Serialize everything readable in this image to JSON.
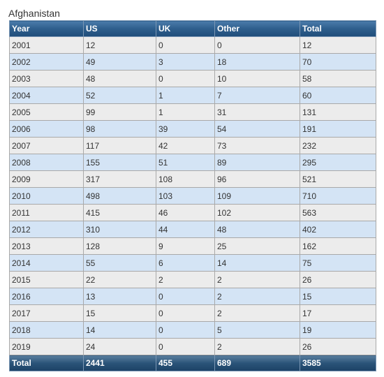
{
  "caption": "Afghanistan",
  "columns": [
    "Year",
    "US",
    "UK",
    "Other",
    "Total"
  ],
  "rows": [
    [
      "2001",
      "12",
      "0",
      "0",
      "12"
    ],
    [
      "2002",
      "49",
      "3",
      "18",
      "70"
    ],
    [
      "2003",
      "48",
      "0",
      "10",
      "58"
    ],
    [
      "2004",
      "52",
      "1",
      "7",
      "60"
    ],
    [
      "2005",
      "99",
      "1",
      "31",
      "131"
    ],
    [
      "2006",
      "98",
      "39",
      "54",
      "191"
    ],
    [
      "2007",
      "117",
      "42",
      "73",
      "232"
    ],
    [
      "2008",
      "155",
      "51",
      "89",
      "295"
    ],
    [
      "2009",
      "317",
      "108",
      "96",
      "521"
    ],
    [
      "2010",
      "498",
      "103",
      "109",
      "710"
    ],
    [
      "2011",
      "415",
      "46",
      "102",
      "563"
    ],
    [
      "2012",
      "310",
      "44",
      "48",
      "402"
    ],
    [
      "2013",
      "128",
      "9",
      "25",
      "162"
    ],
    [
      "2014",
      "55",
      "6",
      "14",
      "75"
    ],
    [
      "2015",
      "22",
      "2",
      "2",
      "26"
    ],
    [
      "2016",
      "13",
      "0",
      "2",
      "15"
    ],
    [
      "2017",
      "15",
      "0",
      "2",
      "17"
    ],
    [
      "2018",
      "14",
      "0",
      "5",
      "19"
    ],
    [
      "2019",
      "24",
      "0",
      "2",
      "26"
    ]
  ],
  "footer": [
    "Total",
    "2441",
    "455",
    "689",
    "3585"
  ],
  "colors": {
    "header_bg": "#2e5e8c",
    "row_odd": "#ececec",
    "row_even": "#d4e4f5",
    "border": "#a9a9a9"
  }
}
